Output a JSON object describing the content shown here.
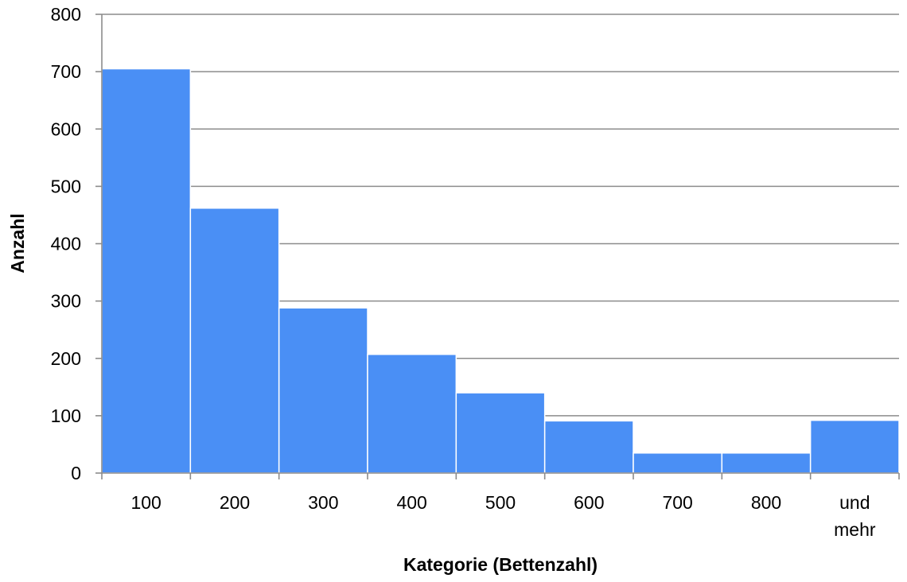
{
  "chart_data": {
    "type": "bar",
    "categories": [
      "100",
      "200",
      "300",
      "400",
      "500",
      "600",
      "700",
      "800",
      "und mehr"
    ],
    "values": [
      705,
      462,
      288,
      207,
      140,
      91,
      35,
      35,
      92
    ],
    "title": "",
    "xlabel": "Kategorie (Bettenzahl)",
    "ylabel": "Anzahl",
    "ylim": [
      0,
      800
    ],
    "yticks": [
      0,
      100,
      200,
      300,
      400,
      500,
      600,
      700,
      800
    ],
    "grid": true,
    "legend": "none",
    "colors": {
      "bar": "#4a8ff5",
      "grid": "#8c8c8c",
      "axis": "#8c8c8c"
    }
  }
}
